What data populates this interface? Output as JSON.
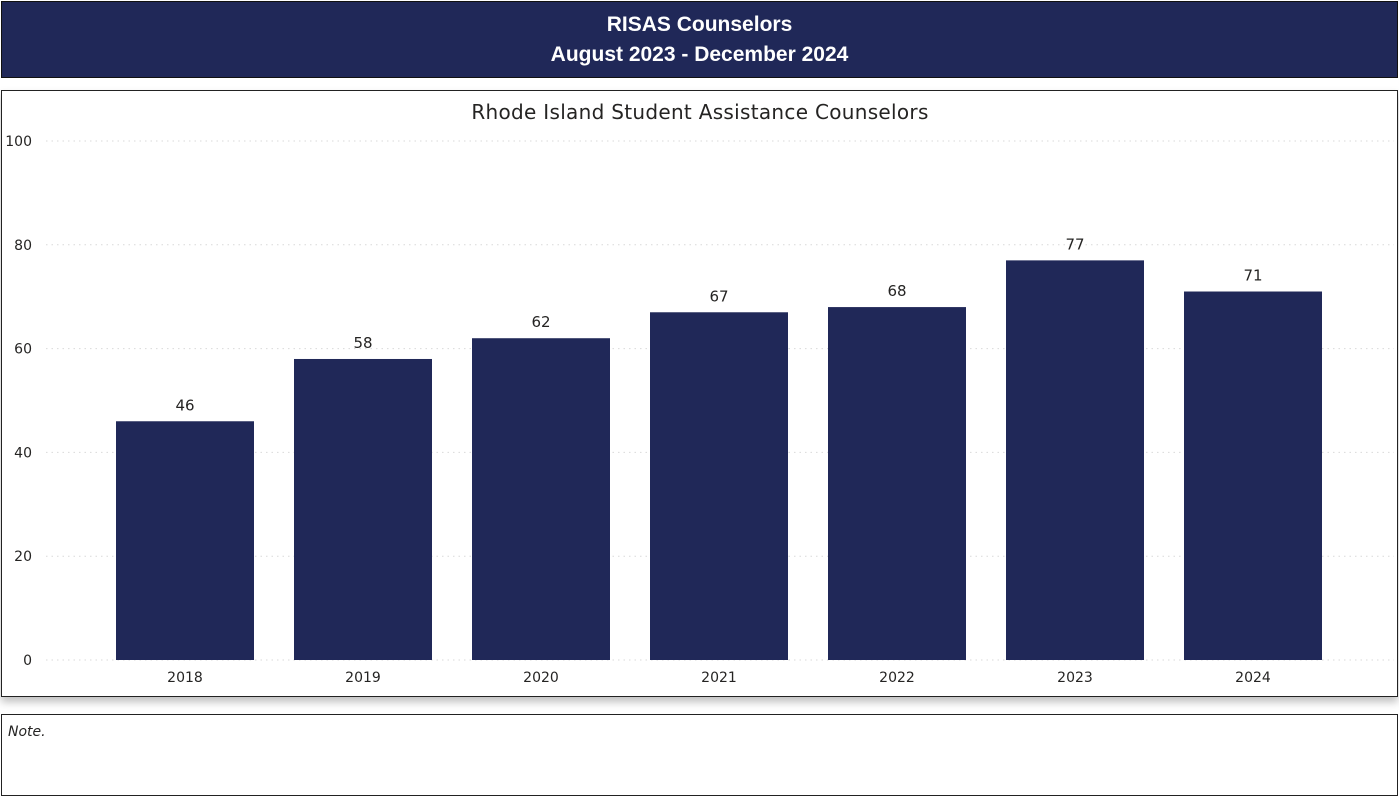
{
  "header": {
    "title": "RISAS Counselors",
    "subtitle": "August 2023 - December 2024"
  },
  "note": {
    "text": "Note."
  },
  "colors": {
    "header_bg": "#202858",
    "bar": "#202858",
    "gridline": "#d9d9d9"
  },
  "chart_data": {
    "type": "bar",
    "title": "Rhode Island Student Assistance Counselors",
    "categories": [
      "2018",
      "2019",
      "2020",
      "2021",
      "2022",
      "2023",
      "2024"
    ],
    "values": [
      46,
      58,
      62,
      67,
      68,
      77,
      71
    ],
    "xlabel": "",
    "ylabel": "",
    "ylim": [
      0,
      100
    ],
    "yticks": [
      0,
      20,
      40,
      60,
      80,
      100
    ],
    "grid": true,
    "legend": "none",
    "data_labels": true
  }
}
